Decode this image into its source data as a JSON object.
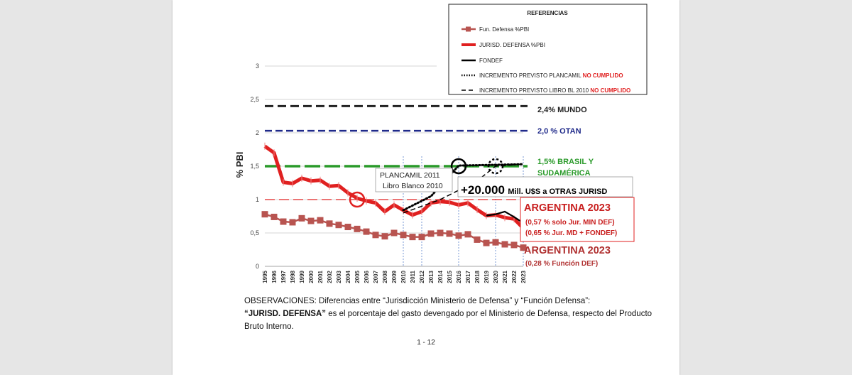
{
  "chart_data": {
    "type": "line",
    "ylabel": "% PBI",
    "ylim": [
      0,
      3
    ],
    "yticks": [
      0,
      0.5,
      1,
      1.5,
      2,
      2.5,
      3
    ],
    "ytick_labels": [
      "0",
      "0,5",
      "1",
      "1,5",
      "2",
      "2,5",
      "3"
    ],
    "x": [
      "1995",
      "1996",
      "1997",
      "1998",
      "1999",
      "2000",
      "2001",
      "2002",
      "2003",
      "2004",
      "2005",
      "2006",
      "2007",
      "2008",
      "2009",
      "2010",
      "2011",
      "2012",
      "2013",
      "2014",
      "2015",
      "2016",
      "2017",
      "2018",
      "2019",
      "2020",
      "2021",
      "2022",
      "2023"
    ],
    "series": [
      {
        "name": "Fun. Defensa %PBI",
        "color": "#b85450",
        "values": [
          0.78,
          0.74,
          0.67,
          0.66,
          0.72,
          0.68,
          0.69,
          0.64,
          0.62,
          0.59,
          0.56,
          0.52,
          0.47,
          0.45,
          0.5,
          0.47,
          0.44,
          0.44,
          0.49,
          0.5,
          0.49,
          0.46,
          0.48,
          0.4,
          0.35,
          0.36,
          0.33,
          0.32,
          0.28
        ]
      },
      {
        "name": "JURISD. DEFENSA %PBI",
        "color": "#e02020",
        "values": [
          1.8,
          1.7,
          1.26,
          1.24,
          1.32,
          1.28,
          1.29,
          1.2,
          1.21,
          1.1,
          1.02,
          0.98,
          0.95,
          0.82,
          0.92,
          0.84,
          0.77,
          0.82,
          0.95,
          0.97,
          0.96,
          0.92,
          0.95,
          0.85,
          0.76,
          0.77,
          0.73,
          0.71,
          0.57
        ]
      },
      {
        "name": "FONDEF",
        "color": "#000000",
        "x": [
          "2019",
          "2020",
          "2021",
          "2022",
          "2023"
        ],
        "values": [
          0.76,
          0.78,
          0.82,
          0.74,
          0.65
        ]
      },
      {
        "name": "INCREMENTO PREVISTO  PLANCAMIL",
        "status": "NO CUMPLIDO",
        "color": "#000000",
        "x": [
          "2010",
          "2013",
          "2016",
          "2023"
        ],
        "values": [
          0.84,
          1.05,
          1.51,
          1.53
        ]
      },
      {
        "name": "INCREMENTO PREVISTO LIBRO BL 2010",
        "status": "NO CUMPLIDO",
        "color": "#000000",
        "x": [
          "2010",
          "2014",
          "2018",
          "2020",
          "2023"
        ],
        "values": [
          0.8,
          1.0,
          1.28,
          1.5,
          1.53
        ]
      }
    ],
    "reference_lines": [
      {
        "value": 2.4,
        "label": "2,4% MUNDO",
        "color": "#222222"
      },
      {
        "value": 2.03,
        "label": "2,0 % OTAN",
        "color": "#1f2a8a"
      },
      {
        "value": 1.5,
        "label": "1,5% BRASIL  Y",
        "label2": "SUDAMÉRICA",
        "color": "#2a9a2a"
      },
      {
        "value": 1.0,
        "label": "",
        "color": "#e02020"
      }
    ],
    "vlines": [
      "2010",
      "2012",
      "2016",
      "2020",
      "2023"
    ],
    "circles": [
      {
        "x": "2005",
        "y": 1.0,
        "color": "#e02020"
      },
      {
        "x": "2016",
        "y": 1.5,
        "color": "#000000"
      },
      {
        "x": "2020",
        "y": 1.5,
        "color": "#000000",
        "dashed": true
      }
    ],
    "legend": {
      "title": "REFERENCIAS",
      "position": "top-right",
      "items": [
        {
          "label": "Fun. Defensa %PBI",
          "extra": ""
        },
        {
          "label": "JURISD. DEFENSA %PBI",
          "extra": ""
        },
        {
          "label": "FONDEF",
          "extra": ""
        },
        {
          "label": "INCREMENTO PREVISTO  PLANCAMIL",
          "extra": "NO CUMPLIDO"
        },
        {
          "label": "INCREMENTO PREVISTO LIBRO BL 2010",
          "extra": "NO CUMPLIDO"
        }
      ]
    },
    "annotations": {
      "plancamil_box": [
        "PLANCAMIL 2011",
        "Libro Blanco 2010"
      ],
      "otras_jurisd_big": "+20.000",
      "otras_jurisd_small": "Mill. U$S a OTRAS JURISD",
      "argentina_red_title": "ARGENTINA 2023",
      "argentina_red_line1": "(0,57 % solo Jur. MIN DEF)",
      "argentina_red_line2": "(0,65 % Jur. MD + FONDEF)",
      "argentina_brown_title": "ARGENTINA 2023",
      "argentina_brown_line1": "(0,28 % Función DEF)"
    }
  },
  "observations": {
    "line1": "OBSERVACIONES: Diferencias entre “Jurisdicción Ministerio de Defensa” y “Función Defensa”:",
    "bold_term": "“JURISD. DEFENSA”",
    "line2_rest": " es el porcentaje del gasto devengado por el Ministerio de Defensa, respecto del Producto",
    "line3": "Bruto Interno."
  },
  "page_number": "1 - 12"
}
